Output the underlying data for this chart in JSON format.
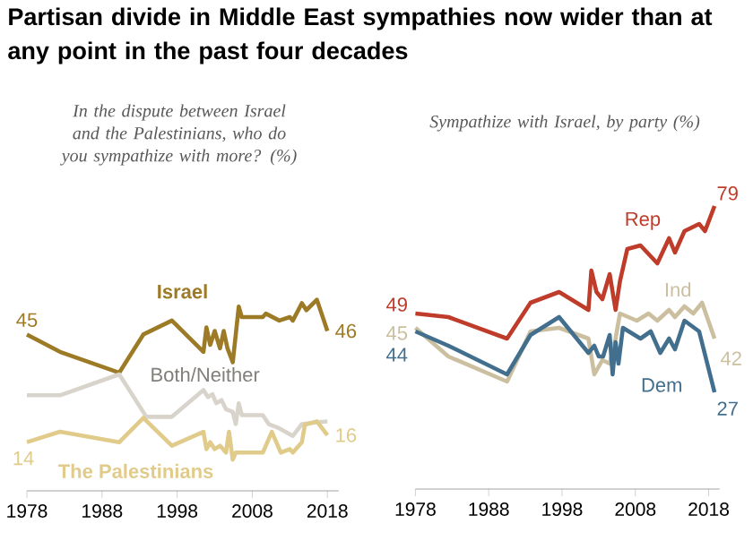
{
  "chart_data": [
    {
      "type": "line",
      "title": "Partisan divide in Middle East sympathies now wider than at any point in the past four decades",
      "subtitle": "In the dispute between Israel and the Palestinians, who do you sympathize with more? (%)",
      "xlim": [
        1978,
        2019.5
      ],
      "xticks": [
        1978,
        1988,
        1998,
        2008,
        2018
      ],
      "tick_labels": "x",
      "grid": false,
      "legend": false,
      "marker": "none",
      "line_style": "solid",
      "series": [
        {
          "name": "Israel",
          "color": "#9c7a26",
          "x": [
            1978,
            1982.4,
            1990.3,
            1993.5,
            1997.3,
            2001.5,
            2001.9,
            2002.4,
            2003,
            2003.7,
            2004.2,
            2004.7,
            2005.4,
            2005.8,
            2006.2,
            2006.6,
            2009.4,
            2009.8,
            2011.6,
            2013,
            2013.4,
            2014.6,
            2015.2,
            2016.6,
            2018
          ],
          "values": [
            45,
            40,
            34,
            45,
            49,
            40,
            47,
            42,
            46,
            41,
            46,
            41,
            37,
            45,
            53,
            50,
            50,
            51,
            49,
            50,
            49,
            54,
            52,
            55,
            46
          ],
          "value_labels": [
            "45",
            null,
            null,
            null,
            null,
            null,
            null,
            null,
            null,
            null,
            null,
            null,
            null,
            null,
            null,
            null,
            null,
            null,
            null,
            null,
            null,
            null,
            null,
            null,
            "46"
          ]
        },
        {
          "name": "Both/Neither",
          "color": "#d8d3cb",
          "x": [
            1978,
            1982.4,
            1990.3,
            1993.9,
            1997.3,
            2001.5,
            2002.1,
            2002.7,
            2003.2,
            2003.9,
            2004.5,
            2005.4,
            2005.8,
            2006.2,
            2006.6,
            2009.4,
            2010.2,
            2011.6,
            2013.4,
            2014.6,
            2016.6,
            2018
          ],
          "values": [
            27.5,
            27.5,
            33.5,
            21.3,
            21.3,
            29,
            27,
            27.8,
            25.2,
            26.1,
            23.5,
            22.7,
            19.2,
            25.2,
            21.8,
            21.8,
            19.2,
            18,
            15.8,
            19.2,
            19.7,
            20
          ]
        },
        {
          "name": "The Palestinians",
          "color": "#e0cb8a",
          "x": [
            1978,
            1982.4,
            1990.3,
            1993.5,
            1997.3,
            2001.5,
            2001.9,
            2002.4,
            2003,
            2003.7,
            2004.5,
            2004.9,
            2005.4,
            2005.8,
            2009.4,
            2010.6,
            2011.8,
            2013,
            2013.4,
            2014.6,
            2015,
            2016.6,
            2018
          ],
          "values": [
            14,
            17,
            14,
            21,
            13,
            17,
            12,
            14,
            12,
            13,
            11,
            17,
            9,
            11,
            11,
            17,
            11,
            12,
            11,
            14,
            19,
            20,
            16
          ],
          "value_labels": [
            "14",
            null,
            null,
            null,
            null,
            null,
            null,
            null,
            null,
            null,
            null,
            null,
            null,
            null,
            null,
            null,
            null,
            null,
            null,
            null,
            null,
            null,
            "16"
          ]
        }
      ]
    },
    {
      "type": "line",
      "subtitle": "Sympathize with Israel, by party (%)",
      "xlim": [
        1978,
        2019.5
      ],
      "xticks": [
        1978,
        1988,
        1998,
        2008,
        2018
      ],
      "tick_labels": "x",
      "grid": false,
      "legend": false,
      "marker": "none",
      "line_style": "solid",
      "series": [
        {
          "name": "Rep",
          "color": "#bf3b2a",
          "x": [
            1978,
            1982.5,
            1990.5,
            1993.7,
            1997.6,
            2001.6,
            2002,
            2002.7,
            2003.5,
            2004.5,
            2005.3,
            2005.9,
            2006.9,
            2008.7,
            2011,
            2012.6,
            2013.4,
            2014.7,
            2016.7,
            2017.5,
            2018.8
          ],
          "values": [
            49,
            48,
            42,
            52,
            55,
            50,
            61,
            55,
            53,
            60,
            50,
            58,
            67,
            68,
            63,
            70,
            66,
            72,
            74,
            72,
            79
          ],
          "value_labels": [
            "49",
            null,
            null,
            null,
            null,
            null,
            null,
            null,
            null,
            null,
            null,
            null,
            null,
            null,
            null,
            null,
            null,
            null,
            null,
            null,
            "79"
          ]
        },
        {
          "name": "Ind",
          "color": "#cbbf9f",
          "x": [
            1978,
            1982.5,
            1990.5,
            1993.7,
            1997.6,
            2001.6,
            2002.4,
            2003.5,
            2004.5,
            2005.3,
            2005.9,
            2008.2,
            2009.8,
            2011,
            2012.6,
            2013.4,
            2014.7,
            2015.9,
            2017.1,
            2018.8
          ],
          "values": [
            45,
            37,
            30,
            44,
            45,
            42,
            32,
            36,
            35,
            42,
            49,
            47,
            49,
            47,
            50,
            48,
            51,
            49,
            52,
            42
          ],
          "value_labels": [
            "45",
            null,
            null,
            null,
            null,
            null,
            null,
            null,
            null,
            null,
            null,
            null,
            null,
            null,
            null,
            null,
            null,
            null,
            null,
            "42"
          ]
        },
        {
          "name": "Dem",
          "color": "#436f8f",
          "x": [
            1978,
            1982.5,
            1990.5,
            1993.7,
            1997.6,
            2001.6,
            2002.4,
            2003,
            2003.6,
            2004.5,
            2004.9,
            2005.3,
            2005.7,
            2006.3,
            2008.7,
            2010.1,
            2011.4,
            2012.6,
            2013.4,
            2014.7,
            2016.7,
            2018.8
          ],
          "values": [
            44,
            40,
            32,
            43,
            48,
            38,
            40,
            37,
            37,
            43,
            32,
            41,
            35,
            45,
            42,
            44,
            38,
            42,
            39,
            47,
            44,
            27
          ],
          "value_labels": [
            "44",
            null,
            null,
            null,
            null,
            null,
            null,
            null,
            null,
            null,
            null,
            null,
            null,
            null,
            null,
            null,
            null,
            null,
            null,
            null,
            null,
            "27"
          ]
        }
      ]
    }
  ]
}
